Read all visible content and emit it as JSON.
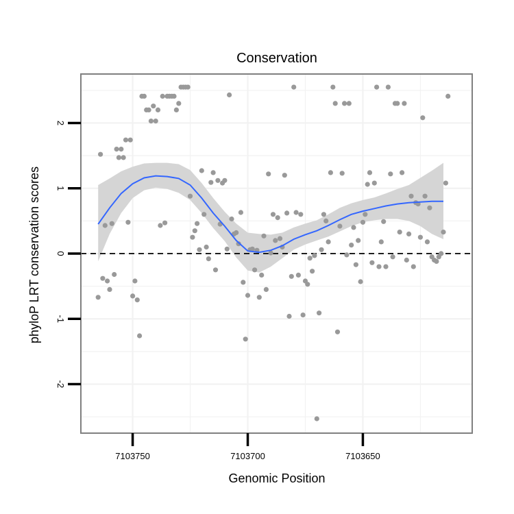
{
  "chart_data": {
    "type": "scatter",
    "title": "Conservation",
    "xlabel": "Genomic Position",
    "ylabel": "phyloP LRT conservation scores",
    "x_reversed": true,
    "xlim": [
      7103772.5,
      7103602.5
    ],
    "ylim": [
      -2.75,
      2.75
    ],
    "x_ticks": [
      7103750,
      7103700,
      7103650
    ],
    "x_tick_labels": [
      "7103750",
      "7103700",
      "7103650"
    ],
    "y_ticks": [
      -2,
      -1,
      0,
      1,
      2
    ],
    "y_tick_labels": [
      "-2",
      "-1",
      "0",
      "1",
      "2"
    ],
    "reference_line": {
      "y": 0,
      "style": "dashed"
    },
    "grid": true,
    "colors": {
      "points": "#999999",
      "smooth_line": "#3366FF",
      "ribbon": "#D3D3D3",
      "grid": "#F2F2F2",
      "border": "#7F7F7F"
    },
    "points": [
      {
        "x": 7103765,
        "y": -0.67
      },
      {
        "x": 7103764,
        "y": 1.52
      },
      {
        "x": 7103763,
        "y": -0.38
      },
      {
        "x": 7103762,
        "y": 0.43
      },
      {
        "x": 7103761,
        "y": -0.42
      },
      {
        "x": 7103760,
        "y": -0.55
      },
      {
        "x": 7103759,
        "y": 0.46
      },
      {
        "x": 7103758,
        "y": -0.32
      },
      {
        "x": 7103757,
        "y": 1.6
      },
      {
        "x": 7103756,
        "y": 1.47
      },
      {
        "x": 7103755,
        "y": 1.6
      },
      {
        "x": 7103754,
        "y": 1.47
      },
      {
        "x": 7103753,
        "y": 1.74
      },
      {
        "x": 7103752,
        "y": 0.48
      },
      {
        "x": 7103751,
        "y": 1.74
      },
      {
        "x": 7103750,
        "y": -0.65
      },
      {
        "x": 7103749,
        "y": -0.42
      },
      {
        "x": 7103748,
        "y": -0.71
      },
      {
        "x": 7103747,
        "y": -1.26
      },
      {
        "x": 7103746,
        "y": 2.41
      },
      {
        "x": 7103745,
        "y": 2.41
      },
      {
        "x": 7103744,
        "y": 2.2
      },
      {
        "x": 7103743,
        "y": 2.2
      },
      {
        "x": 7103742,
        "y": 2.03
      },
      {
        "x": 7103741,
        "y": 2.26
      },
      {
        "x": 7103740,
        "y": 2.03
      },
      {
        "x": 7103739,
        "y": 2.2
      },
      {
        "x": 7103738,
        "y": 0.43
      },
      {
        "x": 7103737,
        "y": 2.41
      },
      {
        "x": 7103736,
        "y": 0.47
      },
      {
        "x": 7103735,
        "y": 2.41
      },
      {
        "x": 7103734,
        "y": 2.41
      },
      {
        "x": 7103733,
        "y": 2.41
      },
      {
        "x": 7103732,
        "y": 2.41
      },
      {
        "x": 7103731,
        "y": 2.2
      },
      {
        "x": 7103730,
        "y": 2.3
      },
      {
        "x": 7103729,
        "y": 2.55
      },
      {
        "x": 7103728,
        "y": 2.55
      },
      {
        "x": 7103727,
        "y": 2.55
      },
      {
        "x": 7103726,
        "y": 2.55
      },
      {
        "x": 7103725,
        "y": 0.88
      },
      {
        "x": 7103724,
        "y": 0.25
      },
      {
        "x": 7103723,
        "y": 0.35
      },
      {
        "x": 7103722,
        "y": 0.46
      },
      {
        "x": 7103721,
        "y": 0.06
      },
      {
        "x": 7103720,
        "y": 1.27
      },
      {
        "x": 7103719,
        "y": 0.6
      },
      {
        "x": 7103718,
        "y": 0.1
      },
      {
        "x": 7103717,
        "y": -0.08
      },
      {
        "x": 7103716,
        "y": 1.09
      },
      {
        "x": 7103715,
        "y": 1.24
      },
      {
        "x": 7103714,
        "y": -0.25
      },
      {
        "x": 7103713,
        "y": 1.12
      },
      {
        "x": 7103712,
        "y": 0.45
      },
      {
        "x": 7103711,
        "y": 1.08
      },
      {
        "x": 7103710,
        "y": 1.12
      },
      {
        "x": 7103709,
        "y": 0.07
      },
      {
        "x": 7103708,
        "y": 2.43
      },
      {
        "x": 7103707,
        "y": 0.53
      },
      {
        "x": 7103706,
        "y": 0.3
      },
      {
        "x": 7103705,
        "y": 0.32
      },
      {
        "x": 7103704,
        "y": 0.15
      },
      {
        "x": 7103703,
        "y": 0.63
      },
      {
        "x": 7103702,
        "y": -0.44
      },
      {
        "x": 7103701,
        "y": -1.31
      },
      {
        "x": 7103700,
        "y": -0.64
      },
      {
        "x": 7103699,
        "y": 0.06
      },
      {
        "x": 7103698,
        "y": 0.07
      },
      {
        "x": 7103697,
        "y": -0.25
      },
      {
        "x": 7103696,
        "y": 0.05
      },
      {
        "x": 7103695,
        "y": -0.67
      },
      {
        "x": 7103694,
        "y": -0.33
      },
      {
        "x": 7103693,
        "y": 0.27
      },
      {
        "x": 7103692,
        "y": -0.55
      },
      {
        "x": 7103691,
        "y": 1.22
      },
      {
        "x": 7103690,
        "y": 0.01
      },
      {
        "x": 7103689,
        "y": 0.6
      },
      {
        "x": 7103688,
        "y": 0.2
      },
      {
        "x": 7103687,
        "y": 0.55
      },
      {
        "x": 7103686,
        "y": 0.23
      },
      {
        "x": 7103685,
        "y": 0.1
      },
      {
        "x": 7103684,
        "y": 1.2
      },
      {
        "x": 7103683,
        "y": 0.62
      },
      {
        "x": 7103682,
        "y": -0.96
      },
      {
        "x": 7103681,
        "y": -0.35
      },
      {
        "x": 7103680,
        "y": 2.55
      },
      {
        "x": 7103679,
        "y": 0.63
      },
      {
        "x": 7103678,
        "y": -0.33
      },
      {
        "x": 7103677,
        "y": 0.6
      },
      {
        "x": 7103676,
        "y": -0.94
      },
      {
        "x": 7103675,
        "y": -0.42
      },
      {
        "x": 7103674,
        "y": -0.47
      },
      {
        "x": 7103673,
        "y": -0.07
      },
      {
        "x": 7103672,
        "y": -0.27
      },
      {
        "x": 7103671,
        "y": -0.03
      },
      {
        "x": 7103670,
        "y": -2.53
      },
      {
        "x": 7103669,
        "y": -0.91
      },
      {
        "x": 7103668,
        "y": 0.06
      },
      {
        "x": 7103667,
        "y": 0.6
      },
      {
        "x": 7103666,
        "y": 0.5
      },
      {
        "x": 7103665,
        "y": 0.18
      },
      {
        "x": 7103664,
        "y": 1.24
      },
      {
        "x": 7103663,
        "y": 2.55
      },
      {
        "x": 7103662,
        "y": 2.3
      },
      {
        "x": 7103661,
        "y": -1.2
      },
      {
        "x": 7103660,
        "y": 0.42
      },
      {
        "x": 7103659,
        "y": 1.23
      },
      {
        "x": 7103658,
        "y": 2.3
      },
      {
        "x": 7103657,
        "y": -0.02
      },
      {
        "x": 7103656,
        "y": 2.3
      },
      {
        "x": 7103655,
        "y": 0.13
      },
      {
        "x": 7103654,
        "y": 0.4
      },
      {
        "x": 7103653,
        "y": -0.17
      },
      {
        "x": 7103652,
        "y": 0.2
      },
      {
        "x": 7103651,
        "y": -0.43
      },
      {
        "x": 7103650,
        "y": 0.48
      },
      {
        "x": 7103649,
        "y": 0.6
      },
      {
        "x": 7103648,
        "y": 1.06
      },
      {
        "x": 7103647,
        "y": 1.24
      },
      {
        "x": 7103646,
        "y": -0.14
      },
      {
        "x": 7103645,
        "y": 1.08
      },
      {
        "x": 7103644,
        "y": 2.55
      },
      {
        "x": 7103643,
        "y": -0.2
      },
      {
        "x": 7103642,
        "y": 0.18
      },
      {
        "x": 7103641,
        "y": 0.49
      },
      {
        "x": 7103640,
        "y": -0.2
      },
      {
        "x": 7103639,
        "y": 2.55
      },
      {
        "x": 7103638,
        "y": 1.22
      },
      {
        "x": 7103637,
        "y": -0.05
      },
      {
        "x": 7103636,
        "y": 2.3
      },
      {
        "x": 7103635,
        "y": 2.3
      },
      {
        "x": 7103634,
        "y": 0.33
      },
      {
        "x": 7103633,
        "y": 1.24
      },
      {
        "x": 7103632,
        "y": 2.3
      },
      {
        "x": 7103631,
        "y": -0.1
      },
      {
        "x": 7103630,
        "y": 0.3
      },
      {
        "x": 7103629,
        "y": 0.88
      },
      {
        "x": 7103628,
        "y": -0.2
      },
      {
        "x": 7103627,
        "y": 0.78
      },
      {
        "x": 7103626,
        "y": 0.76
      },
      {
        "x": 7103625,
        "y": 0.25
      },
      {
        "x": 7103624,
        "y": 2.08
      },
      {
        "x": 7103623,
        "y": 0.88
      },
      {
        "x": 7103622,
        "y": 0.18
      },
      {
        "x": 7103621,
        "y": 0.7
      },
      {
        "x": 7103620,
        "y": -0.05
      },
      {
        "x": 7103619,
        "y": -0.1
      },
      {
        "x": 7103618,
        "y": -0.12
      },
      {
        "x": 7103617,
        "y": -0.05
      },
      {
        "x": 7103616,
        "y": 0.0
      },
      {
        "x": 7103615,
        "y": 0.33
      },
      {
        "x": 7103614,
        "y": 1.08
      },
      {
        "x": 7103613,
        "y": 2.41
      }
    ],
    "smooth": {
      "x": [
        7103765,
        7103760,
        7103755,
        7103750,
        7103745,
        7103740,
        7103735,
        7103730,
        7103725,
        7103720,
        7103715,
        7103710,
        7103705,
        7103700,
        7103695,
        7103690,
        7103685,
        7103680,
        7103675,
        7103670,
        7103665,
        7103660,
        7103655,
        7103650,
        7103645,
        7103640,
        7103635,
        7103630,
        7103625,
        7103620,
        7103615
      ],
      "y": [
        0.45,
        0.7,
        0.92,
        1.07,
        1.16,
        1.19,
        1.18,
        1.15,
        1.05,
        0.85,
        0.62,
        0.42,
        0.2,
        0.04,
        0.02,
        0.05,
        0.12,
        0.22,
        0.29,
        0.35,
        0.43,
        0.52,
        0.6,
        0.65,
        0.69,
        0.73,
        0.76,
        0.78,
        0.79,
        0.8,
        0.8
      ],
      "lower": [
        -0.12,
        0.3,
        0.62,
        0.85,
        0.97,
        1.01,
        0.99,
        0.93,
        0.82,
        0.62,
        0.39,
        0.19,
        -0.06,
        -0.26,
        -0.29,
        -0.2,
        -0.07,
        0.06,
        0.14,
        0.2,
        0.26,
        0.34,
        0.42,
        0.48,
        0.51,
        0.53,
        0.53,
        0.5,
        0.42,
        0.3,
        0.22
      ],
      "upper": [
        1.05,
        1.15,
        1.26,
        1.33,
        1.38,
        1.39,
        1.39,
        1.37,
        1.28,
        1.08,
        0.85,
        0.64,
        0.46,
        0.32,
        0.3,
        0.29,
        0.32,
        0.4,
        0.46,
        0.51,
        0.6,
        0.7,
        0.77,
        0.82,
        0.86,
        0.92,
        0.99,
        1.05,
        1.16,
        1.27,
        1.39
      ]
    }
  }
}
